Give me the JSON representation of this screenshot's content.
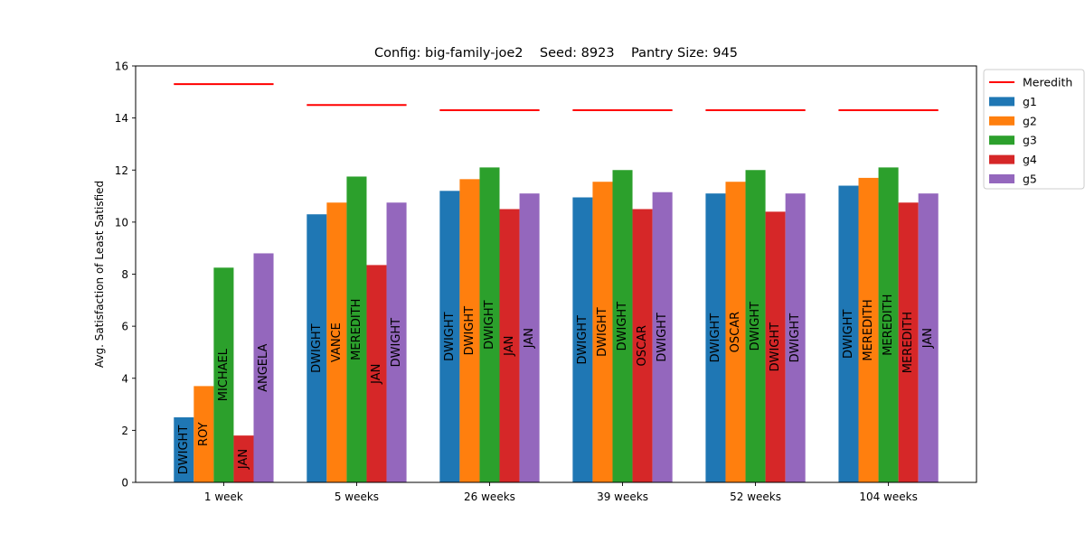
{
  "chart_data": {
    "type": "bar",
    "title": "Config: big-family-joe2    Seed: 8923    Pantry Size: 945",
    "xlabel": "",
    "ylabel": "Avg. Satisfaction of Least Satisfied",
    "ylim": [
      0,
      16
    ],
    "yticks": [
      0,
      2,
      4,
      6,
      8,
      10,
      12,
      14,
      16
    ],
    "categories": [
      "1 week",
      "5 weeks",
      "26 weeks",
      "39 weeks",
      "52 weeks",
      "104 weeks"
    ],
    "series": [
      {
        "name": "g1",
        "color": "#1f77b4",
        "values": [
          2.5,
          10.3,
          11.2,
          10.95,
          11.1,
          11.4
        ],
        "labels": [
          "DWIGHT",
          "DWIGHT",
          "DWIGHT",
          "DWIGHT",
          "DWIGHT",
          "DWIGHT"
        ]
      },
      {
        "name": "g2",
        "color": "#ff7f0e",
        "values": [
          3.7,
          10.75,
          11.65,
          11.55,
          11.55,
          11.7
        ],
        "labels": [
          "ROY",
          "VANCE",
          "DWIGHT",
          "DWIGHT",
          "OSCAR",
          "MEREDITH"
        ]
      },
      {
        "name": "g3",
        "color": "#2ca02c",
        "values": [
          8.25,
          11.75,
          12.1,
          12.0,
          12.0,
          12.1
        ],
        "labels": [
          "MICHAEL",
          "MEREDITH",
          "DWIGHT",
          "DWIGHT",
          "DWIGHT",
          "MEREDITH"
        ]
      },
      {
        "name": "g4",
        "color": "#d62728",
        "values": [
          1.8,
          8.35,
          10.5,
          10.5,
          10.4,
          10.75
        ],
        "labels": [
          "JAN",
          "JAN",
          "JAN",
          "OSCAR",
          "DWIGHT",
          "MEREDITH"
        ]
      },
      {
        "name": "g5",
        "color": "#9467bd",
        "values": [
          8.8,
          10.75,
          11.1,
          11.15,
          11.1,
          11.1
        ],
        "labels": [
          "ANGELA",
          "DWIGHT",
          "JAN",
          "DWIGHT",
          "DWIGHT",
          "JAN"
        ]
      }
    ],
    "reference_line": {
      "name": "Meredith",
      "color": "#ff0000",
      "values": [
        15.3,
        14.5,
        14.3,
        14.3,
        14.3,
        14.3
      ]
    },
    "legend": {
      "position": "outside-top-right",
      "entries": [
        "Meredith",
        "g1",
        "g2",
        "g3",
        "g4",
        "g5"
      ]
    },
    "grid": false
  }
}
